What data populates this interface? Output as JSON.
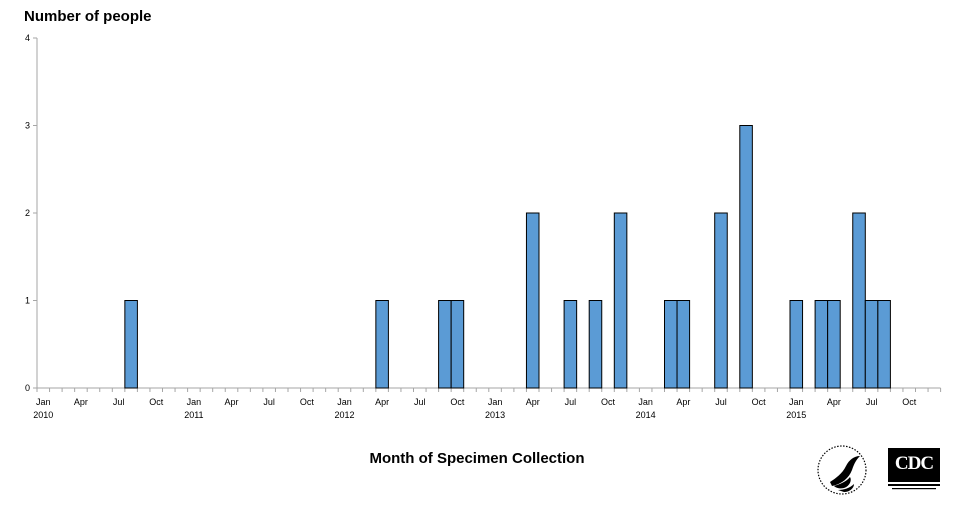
{
  "chart_data": {
    "type": "bar",
    "title": "",
    "ylabel": "Number of people",
    "xlabel": "Month of Specimen Collection",
    "ylim": [
      0,
      4
    ],
    "yticks": [
      0,
      1,
      2,
      3,
      4
    ],
    "x_start": "Jan 2010",
    "x_end": "Dec 2015",
    "month_tick_labels": [
      "Jan",
      "Apr",
      "Jul",
      "Oct",
      "Jan",
      "Apr",
      "Jul",
      "Oct",
      "Jan",
      "Apr",
      "Jul",
      "Oct",
      "Jan",
      "Apr",
      "Jul",
      "Oct",
      "Jan",
      "Apr",
      "Jul",
      "Oct",
      "Jan",
      "Apr",
      "Jul",
      "Oct"
    ],
    "year_labels": [
      "2010",
      "2011",
      "2012",
      "2013",
      "2014",
      "2015"
    ],
    "bar_color": "#5b9bd5",
    "bar_edge_color": "#000000",
    "grid": false,
    "points": [
      {
        "month": "2010-08",
        "value": 1
      },
      {
        "month": "2012-04",
        "value": 1
      },
      {
        "month": "2012-09",
        "value": 1
      },
      {
        "month": "2012-10",
        "value": 1
      },
      {
        "month": "2013-04",
        "value": 2
      },
      {
        "month": "2013-07",
        "value": 1
      },
      {
        "month": "2013-09",
        "value": 1
      },
      {
        "month": "2013-11",
        "value": 2
      },
      {
        "month": "2014-03",
        "value": 1
      },
      {
        "month": "2014-04",
        "value": 1
      },
      {
        "month": "2014-07",
        "value": 2
      },
      {
        "month": "2014-09",
        "value": 3
      },
      {
        "month": "2015-01",
        "value": 1
      },
      {
        "month": "2015-03",
        "value": 1
      },
      {
        "month": "2015-04",
        "value": 1
      },
      {
        "month": "2015-06",
        "value": 2
      },
      {
        "month": "2015-07",
        "value": 1
      },
      {
        "month": "2015-08",
        "value": 1
      }
    ]
  },
  "logos": {
    "hhs": "hhs-seal-logo",
    "cdc": "cdc-logo",
    "cdc_text": "CDC"
  }
}
